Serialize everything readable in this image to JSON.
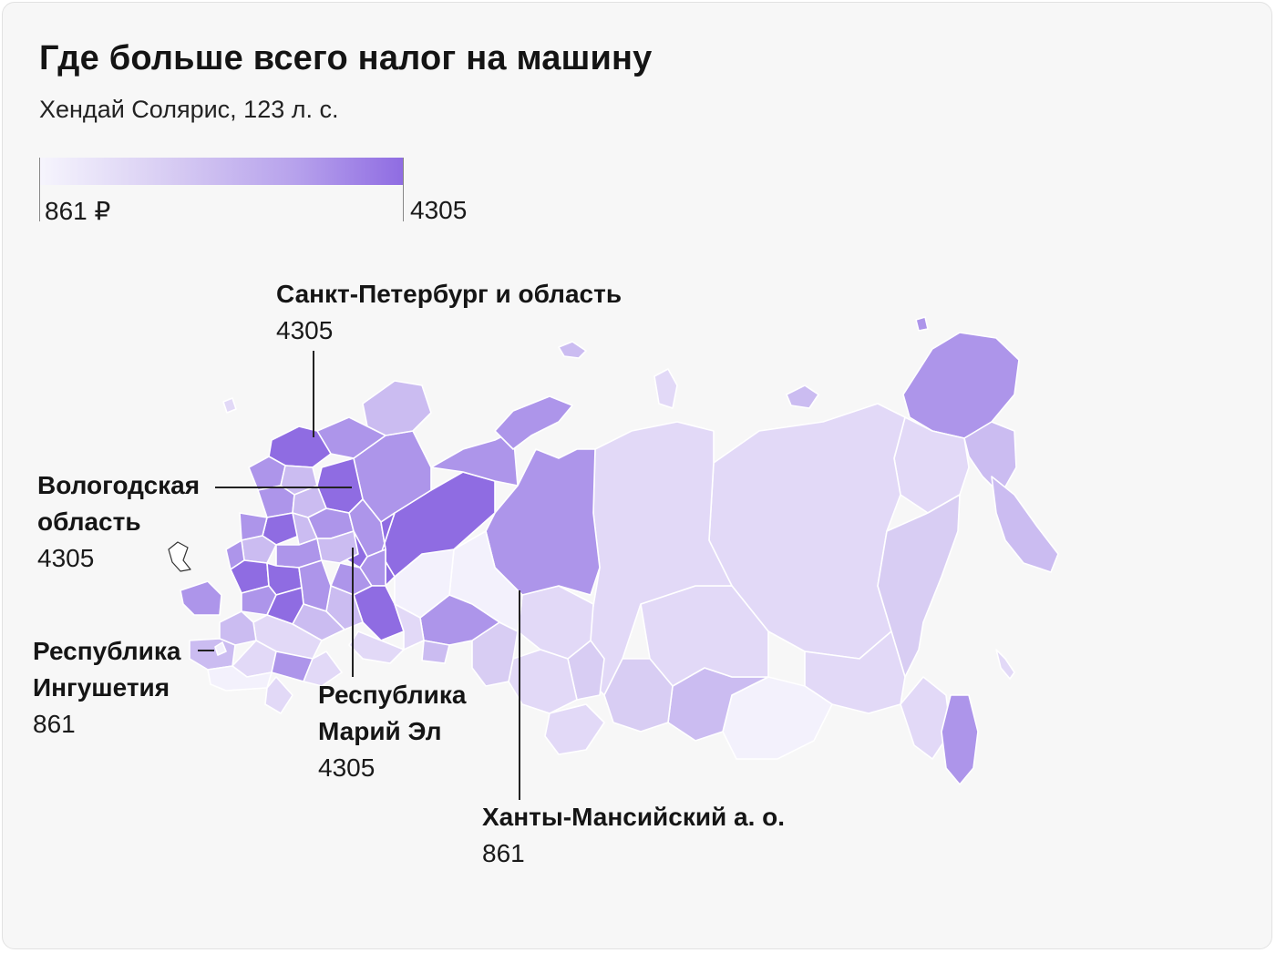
{
  "header": {
    "title": "Где больше всего налог на машину",
    "subtitle": "Хендай Солярис, 123 л. с."
  },
  "legend": {
    "min_label": "861 ₽",
    "max_label": "4305",
    "color_min": "#f6f5fd",
    "color_max": "#8f6ce2"
  },
  "map": {
    "outline_color": "#ffffff",
    "palette": {
      "lightest": "#f3f1fc",
      "light": "#e2d9f7",
      "mid": "#cbbcf1",
      "strong": "#ad95ea",
      "darkest": "#8f6ce2"
    }
  },
  "annotations": [
    {
      "name": "Санкт-Петербург и область",
      "value": "4305"
    },
    {
      "name": "Вологодская\nобласть",
      "value": "4305"
    },
    {
      "name": "Республика\nИнгушетия",
      "value": "861"
    },
    {
      "name": "Республика\nМарий Эл",
      "value": "4305"
    },
    {
      "name": "Ханты-Мансийский а. о.",
      "value": "861"
    }
  ]
}
